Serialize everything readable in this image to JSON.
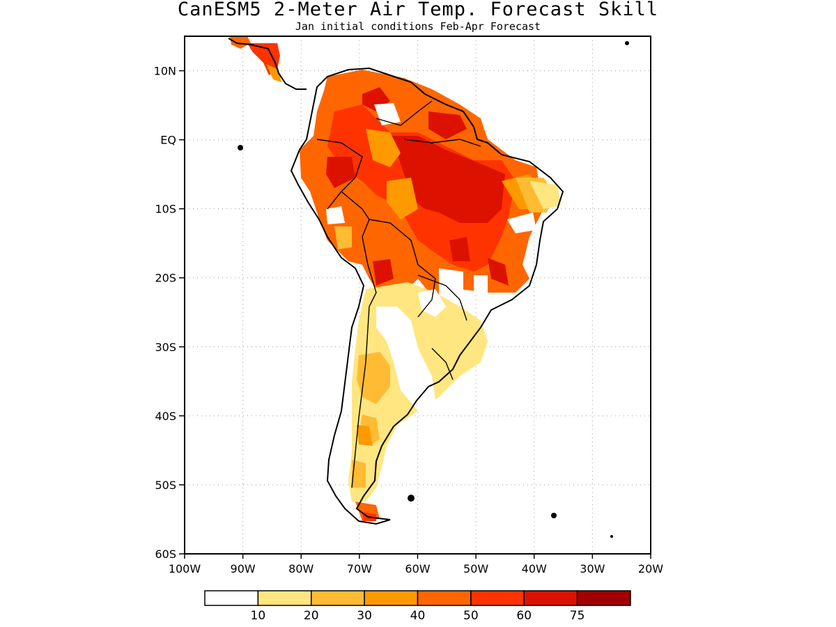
{
  "title": "CanESM5 2-Meter Air Temp. Forecast Skill",
  "subtitle": "Jan initial conditions  Feb-Apr Forecast",
  "map": {
    "lon_range": [
      -100,
      -20
    ],
    "lat_range": [
      -60,
      15
    ],
    "lat_labels": [
      {
        "lat": 10,
        "label": "10N"
      },
      {
        "lat": 0,
        "label": "EQ"
      },
      {
        "lat": -10,
        "label": "10S"
      },
      {
        "lat": -20,
        "label": "20S"
      },
      {
        "lat": -30,
        "label": "30S"
      },
      {
        "lat": -40,
        "label": "40S"
      },
      {
        "lat": -50,
        "label": "50S"
      },
      {
        "lat": -60,
        "label": "60S"
      }
    ],
    "lon_labels": [
      {
        "lon": -100,
        "label": "100W"
      },
      {
        "lon": -90,
        "label": "90W"
      },
      {
        "lon": -80,
        "label": "80W"
      },
      {
        "lon": -70,
        "label": "70W"
      },
      {
        "lon": -60,
        "label": "60W"
      },
      {
        "lon": -50,
        "label": "50W"
      },
      {
        "lon": -40,
        "label": "40W"
      },
      {
        "lon": -30,
        "label": "30W"
      },
      {
        "lon": -20,
        "label": "20W"
      }
    ],
    "grid": true,
    "coastline_color": "#000000"
  },
  "legend": {
    "colors": [
      "#ffffff",
      "#ffe680",
      "#ffbb33",
      "#ff9900",
      "#ff6600",
      "#ff3300",
      "#dd1100",
      "#a00000"
    ],
    "labels": [
      "10",
      "20",
      "30",
      "40",
      "50",
      "60",
      "75"
    ]
  }
}
